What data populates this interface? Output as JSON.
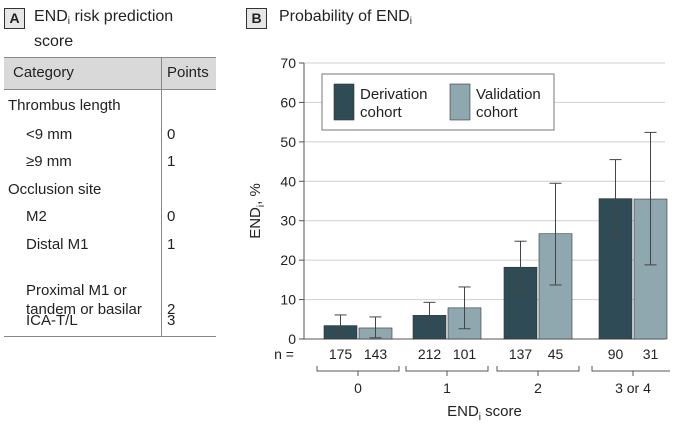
{
  "panel_a": {
    "letter": "A",
    "title_pre": "END",
    "title_sub": "i",
    "title_line1_rest": " risk prediction",
    "title_line2": "score",
    "table": {
      "headers": [
        "Category",
        "Points"
      ],
      "rows": [
        {
          "label": "Thrombus length",
          "points": "",
          "indent": false
        },
        {
          "label": "<9 mm",
          "points": "0",
          "indent": true
        },
        {
          "label": "≥9 mm",
          "points": "1",
          "indent": true
        },
        {
          "label": "Occlusion site",
          "points": "",
          "indent": false
        },
        {
          "label": "M2",
          "points": "0",
          "indent": true
        },
        {
          "label": "Distal M1",
          "points": "1",
          "indent": true
        },
        {
          "label": "Proximal M1 or\ntandem or basilar",
          "points": "2",
          "indent": true
        },
        {
          "label": "ICA-T/L",
          "points": "3",
          "indent": true
        }
      ]
    }
  },
  "panel_b": {
    "letter": "B",
    "title_pre": "Probability of END",
    "title_sub": "i"
  },
  "colors": {
    "derivation": "#2f4b55",
    "validation": "#8fa8b0",
    "axis": "#555555",
    "grid": "#cfcfcf",
    "legend_border": "#777777"
  },
  "chart_data": {
    "type": "bar",
    "title": "Probability of END_i",
    "xlabel": "END_i score",
    "ylabel": "END_i, %",
    "ylim": [
      0,
      70
    ],
    "yticks": [
      0,
      10,
      20,
      30,
      40,
      50,
      60,
      70
    ],
    "grid": true,
    "legend_position": "top-left",
    "categories": [
      "0",
      "1",
      "2",
      "3 or 4"
    ],
    "series": [
      {
        "name": "Derivation cohort",
        "values": [
          3.4,
          6.0,
          18.2,
          35.6
        ],
        "ci_low": [
          1.2,
          3.1,
          11.8,
          25.7
        ],
        "ci_high": [
          6.1,
          9.3,
          24.8,
          45.5
        ],
        "n": [
          "175",
          "212",
          "137",
          "90"
        ]
      },
      {
        "name": "Validation cohort",
        "values": [
          2.8,
          7.9,
          26.7,
          35.5
        ],
        "ci_low": [
          0.3,
          2.6,
          13.7,
          18.8
        ],
        "ci_high": [
          5.6,
          13.2,
          39.5,
          52.4
        ],
        "n": [
          "143",
          "101",
          "45",
          "31"
        ]
      }
    ],
    "n_prefix": "n ="
  }
}
